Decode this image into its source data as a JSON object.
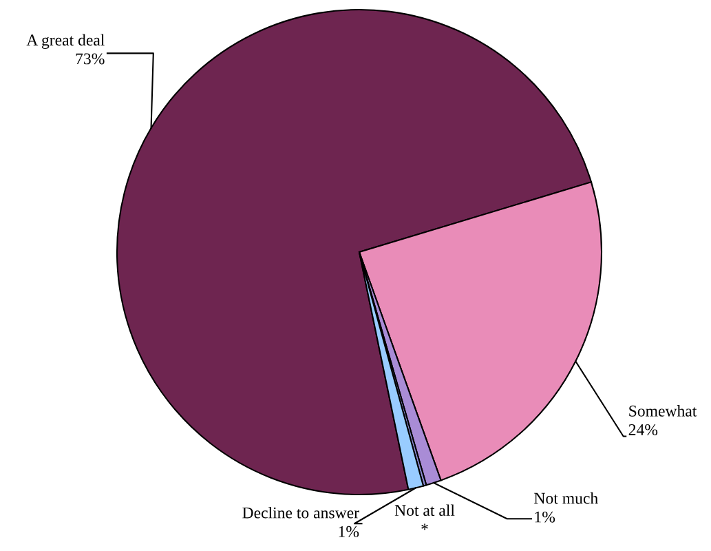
{
  "chart_data": {
    "type": "pie",
    "categories": [
      "A great deal",
      "Somewhat",
      "Not much",
      "Not at all",
      "Decline to answer"
    ],
    "values": [
      73,
      24,
      1,
      0.2,
      1
    ],
    "value_labels": [
      "73%",
      "24%",
      "1%",
      "*",
      "1%"
    ],
    "colors": [
      "#6e2550",
      "#e98cb8",
      "#a98cd6",
      "#8a8ad0",
      "#99ccff"
    ]
  }
}
